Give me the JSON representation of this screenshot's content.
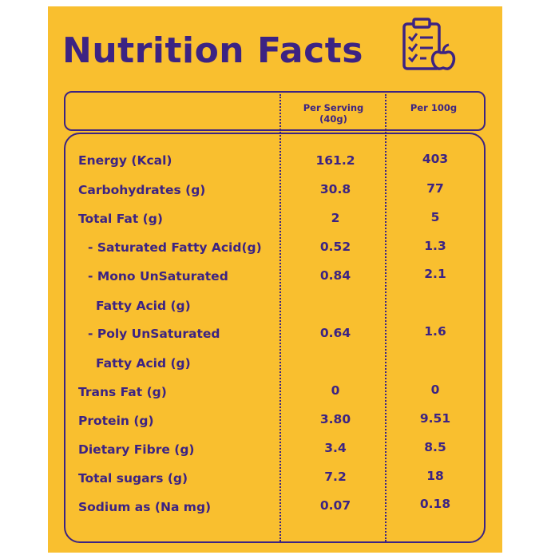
{
  "title": "Nutrition Facts",
  "icon": "clipboard-checklist-apple-icon",
  "colors": {
    "panel": "#f9bf2f",
    "ink": "#3c2383"
  },
  "columns": {
    "per_serving_line1": "Per Serving",
    "per_serving_line2": "(40g)",
    "per_100g": "Per 100g"
  },
  "rows": [
    {
      "label": "Energy (Kcal)",
      "serving": "161.2",
      "per100": "403"
    },
    {
      "label": "Carbohydrates (g)",
      "serving": "30.8",
      "per100": "77"
    },
    {
      "label": "Total Fat (g)",
      "serving": "2",
      "per100": "5"
    },
    {
      "label": "- Saturated Fatty Acid(g)",
      "serving": "0.52",
      "per100": "1.3"
    },
    {
      "label": "- Mono UnSaturated",
      "label_cont": "Fatty Acid (g)",
      "serving": "0.84",
      "per100": "2.1"
    },
    {
      "label": "- Poly UnSaturated",
      "label_cont": "Fatty Acid (g)",
      "serving": "0.64",
      "per100": "1.6"
    },
    {
      "label": "Trans Fat (g)",
      "serving": "0",
      "per100": "0"
    },
    {
      "label": "Protein (g)",
      "serving": "3.80",
      "per100": "9.51"
    },
    {
      "label": "Dietary Fibre (g)",
      "serving": "3.4",
      "per100": "8.5"
    },
    {
      "label": "Total sugars (g)",
      "serving": "7.2",
      "per100": "18"
    },
    {
      "label": "Sodium as (Na mg)",
      "serving": "0.07",
      "per100": "0.18"
    }
  ]
}
